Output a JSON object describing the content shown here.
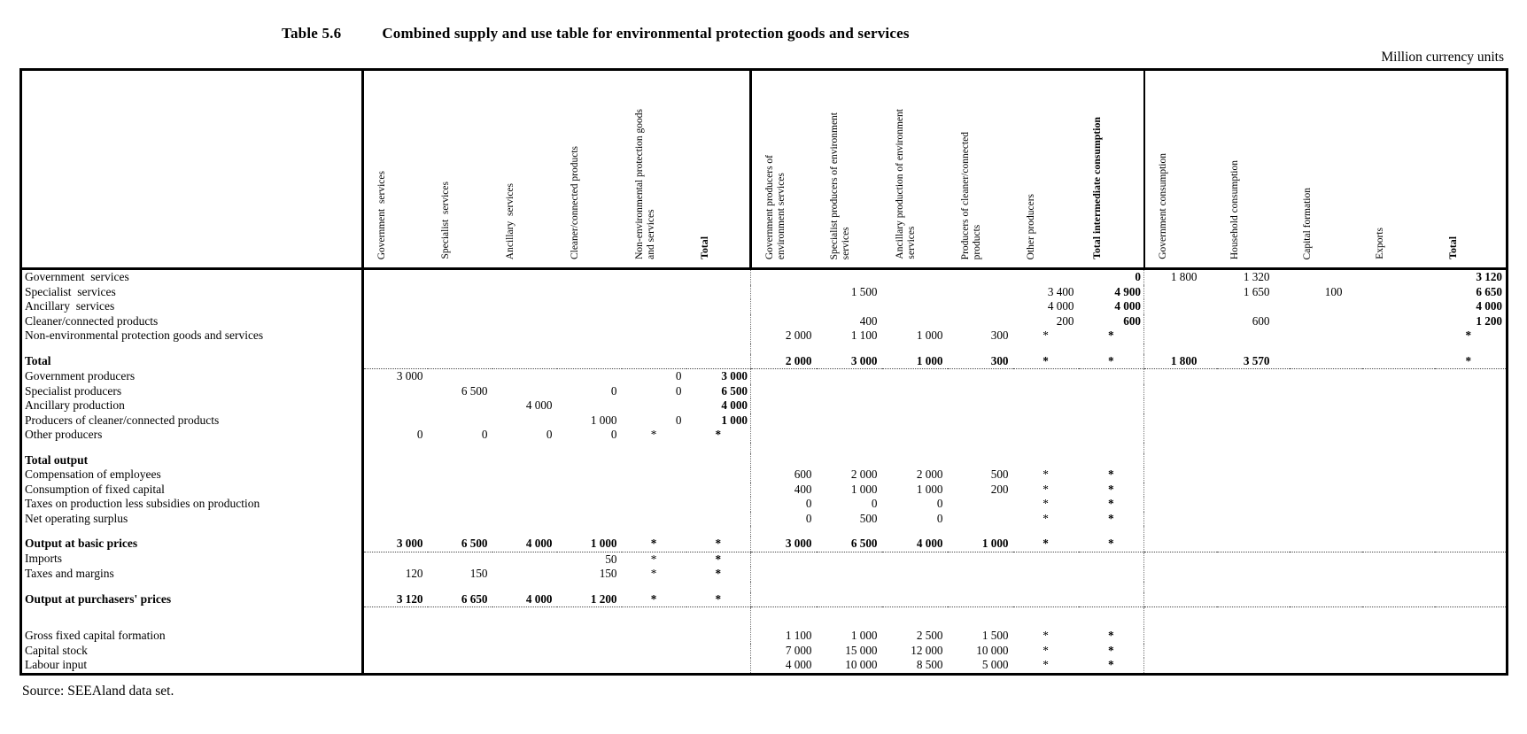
{
  "title": {
    "number": "Table 5.6",
    "caption": "Combined supply and use table for environmental protection goods and services"
  },
  "units_note": "Million currency units",
  "source_note": "Source:  SEEAland data set.",
  "table": {
    "header": {
      "corner": "",
      "groups": [
        {
          "name": "products",
          "columns": [
            {
              "label": "Government  services"
            },
            {
              "label": "Specialist  services"
            },
            {
              "label": "Ancillary  services"
            },
            {
              "label": "Cleaner/connected products"
            },
            {
              "label": "Non-environmental protection goods\nand services"
            },
            {
              "label": "Total",
              "total": true
            }
          ]
        },
        {
          "name": "producers",
          "columns": [
            {
              "label": "Government producers of\nenvironment services"
            },
            {
              "label": "Specialist producers of environment\nservices"
            },
            {
              "label": "Ancillary production of environment\nservices"
            },
            {
              "label": "Producers of cleaner/connected\nproducts"
            },
            {
              "label": "Other producers"
            },
            {
              "label": "Total intermediate consumption",
              "total": true
            }
          ]
        },
        {
          "name": "final-demand",
          "columns": [
            {
              "label": "Government consumption"
            },
            {
              "label": "Household consumption"
            },
            {
              "label": "Capital formation"
            },
            {
              "label": "Exports"
            },
            {
              "label": "Total",
              "total": true
            }
          ]
        }
      ]
    },
    "rows": [
      {
        "label": "Government  services",
        "style": "normal",
        "sep_after": false,
        "cells": [
          "",
          "",
          "",
          "",
          "",
          "",
          "",
          "",
          "",
          "",
          "",
          "0",
          "1 800",
          "1 320",
          "",
          "",
          "3 120"
        ]
      },
      {
        "label": "Specialist  services",
        "style": "normal",
        "sep_after": false,
        "cells": [
          "",
          "",
          "",
          "",
          "",
          "",
          "",
          "1 500",
          "",
          "",
          "3 400",
          "4 900",
          "",
          "1 650",
          "100",
          "",
          "6 650"
        ]
      },
      {
        "label": "Ancillary  services",
        "style": "normal",
        "sep_after": false,
        "cells": [
          "",
          "",
          "",
          "",
          "",
          "",
          "",
          "",
          "",
          "",
          "4 000",
          "4 000",
          "",
          "",
          "",
          "",
          "4 000"
        ]
      },
      {
        "label": "Cleaner/connected products",
        "style": "normal",
        "sep_after": false,
        "cells": [
          "",
          "",
          "",
          "",
          "",
          "",
          "",
          "400",
          "",
          "",
          "200",
          "600",
          "",
          "600",
          "",
          "",
          "1 200"
        ]
      },
      {
        "label": "Non-environmental protection goods and services",
        "style": "normal",
        "sep_after": false,
        "cells": [
          "",
          "",
          "",
          "",
          "",
          "",
          "2 000",
          "1 100",
          "1 000",
          "300",
          "*",
          "*",
          "",
          "",
          "",
          "",
          "*"
        ]
      },
      {
        "label": "",
        "style": "spacer",
        "sep_after": false,
        "cells": []
      },
      {
        "label": "Total",
        "style": "bold",
        "sep_after": true,
        "cells": [
          "",
          "",
          "",
          "",
          "",
          "",
          "2 000",
          "3 000",
          "1 000",
          "300",
          "*",
          "*",
          "1 800",
          "3 570",
          "",
          "",
          "*"
        ]
      },
      {
        "label": "Government producers",
        "style": "normal",
        "sep_after": false,
        "cells": [
          "3 000",
          "",
          "",
          "",
          "0",
          "3 000",
          "",
          "",
          "",
          "",
          "",
          "",
          "",
          "",
          "",
          "",
          ""
        ]
      },
      {
        "label": "Specialist producers",
        "style": "normal",
        "sep_after": false,
        "cells": [
          "",
          "6 500",
          "",
          "0",
          "0",
          "6 500",
          "",
          "",
          "",
          "",
          "",
          "",
          "",
          "",
          "",
          "",
          ""
        ]
      },
      {
        "label": "Ancillary production",
        "style": "normal",
        "sep_after": false,
        "cells": [
          "",
          "",
          "4 000",
          "",
          "",
          "4 000",
          "",
          "",
          "",
          "",
          "",
          "",
          "",
          "",
          "",
          "",
          ""
        ]
      },
      {
        "label": "Producers of cleaner/connected products",
        "style": "normal",
        "sep_after": false,
        "cells": [
          "",
          "",
          "",
          "1 000",
          "0",
          "1 000",
          "",
          "",
          "",
          "",
          "",
          "",
          "",
          "",
          "",
          "",
          ""
        ]
      },
      {
        "label": "Other producers",
        "style": "normal",
        "sep_after": false,
        "cells": [
          "0",
          "0",
          "0",
          "0",
          "*",
          "*",
          "",
          "",
          "",
          "",
          "",
          "",
          "",
          "",
          "",
          "",
          ""
        ]
      },
      {
        "label": "",
        "style": "spacer",
        "sep_after": false,
        "cells": []
      },
      {
        "label": "Total output",
        "style": "bold",
        "sep_after": false,
        "cells": [
          "",
          "",
          "",
          "",
          "",
          "",
          "",
          "",
          "",
          "",
          "",
          "",
          "",
          "",
          "",
          "",
          ""
        ]
      },
      {
        "label": "Compensation of employees",
        "style": "normal",
        "sep_after": false,
        "cells": [
          "",
          "",
          "",
          "",
          "",
          "",
          "600",
          "2 000",
          "2 000",
          "500",
          "*",
          "*",
          "",
          "",
          "",
          "",
          ""
        ]
      },
      {
        "label": "Consumption of fixed capital",
        "style": "normal",
        "sep_after": false,
        "cells": [
          "",
          "",
          "",
          "",
          "",
          "",
          "400",
          "1 000",
          "1 000",
          "200",
          "*",
          "*",
          "",
          "",
          "",
          "",
          ""
        ]
      },
      {
        "label": "Taxes on production less subsidies on production",
        "style": "normal",
        "sep_after": false,
        "cells": [
          "",
          "",
          "",
          "",
          "",
          "",
          "0",
          "0",
          "0",
          "",
          "*",
          "*",
          "",
          "",
          "",
          "",
          ""
        ]
      },
      {
        "label": "Net operating surplus",
        "style": "normal",
        "sep_after": false,
        "cells": [
          "",
          "",
          "",
          "",
          "",
          "",
          "0",
          "500",
          "0",
          "",
          "*",
          "*",
          "",
          "",
          "",
          "",
          ""
        ]
      },
      {
        "label": "",
        "style": "spacer",
        "sep_after": false,
        "cells": []
      },
      {
        "label": "Output at basic prices",
        "style": "bold",
        "sep_after": true,
        "cells": [
          "3 000",
          "6 500",
          "4 000",
          "1 000",
          "*",
          "*",
          "3 000",
          "6 500",
          "4 000",
          "1 000",
          "*",
          "*",
          "",
          "",
          "",
          "",
          ""
        ]
      },
      {
        "label": "Imports",
        "style": "normal",
        "sep_after": false,
        "cells": [
          "",
          "",
          "",
          "50",
          "*",
          "*",
          "",
          "",
          "",
          "",
          "",
          "",
          "",
          "",
          "",
          "",
          ""
        ]
      },
      {
        "label": "Taxes and margins",
        "style": "normal",
        "sep_after": false,
        "cells": [
          "120",
          "150",
          "",
          "150",
          "*",
          "*",
          "",
          "",
          "",
          "",
          "",
          "",
          "",
          "",
          "",
          "",
          ""
        ]
      },
      {
        "label": "",
        "style": "spacer",
        "sep_after": false,
        "cells": []
      },
      {
        "label": "Output at purchasers' prices",
        "style": "bold",
        "sep_after": true,
        "cells": [
          "3 120",
          "6 650",
          "4 000",
          "1 200",
          "*",
          "*",
          "",
          "",
          "",
          "",
          "",
          "",
          "",
          "",
          "",
          "",
          ""
        ]
      },
      {
        "label": "",
        "style": "spacer-tall",
        "sep_after": false,
        "cells": []
      },
      {
        "label": "Gross fixed capital formation",
        "style": "normal",
        "sep_after": false,
        "cells": [
          "",
          "",
          "",
          "",
          "",
          "",
          "1 100",
          "1 000",
          "2 500",
          "1 500",
          "*",
          "*",
          "",
          "",
          "",
          "",
          ""
        ]
      },
      {
        "label": "Capital stock",
        "style": "normal",
        "sep_after": false,
        "cells": [
          "",
          "",
          "",
          "",
          "",
          "",
          "7 000",
          "15 000",
          "12 000",
          "10 000",
          "*",
          "*",
          "",
          "",
          "",
          "",
          ""
        ]
      },
      {
        "label": "Labour input",
        "style": "normal",
        "sep_after": false,
        "cells": [
          "",
          "",
          "",
          "",
          "",
          "",
          "4 000",
          "10 000",
          "8 500",
          "5 000",
          "*",
          "*",
          "",
          "",
          "",
          "",
          ""
        ]
      }
    ]
  }
}
